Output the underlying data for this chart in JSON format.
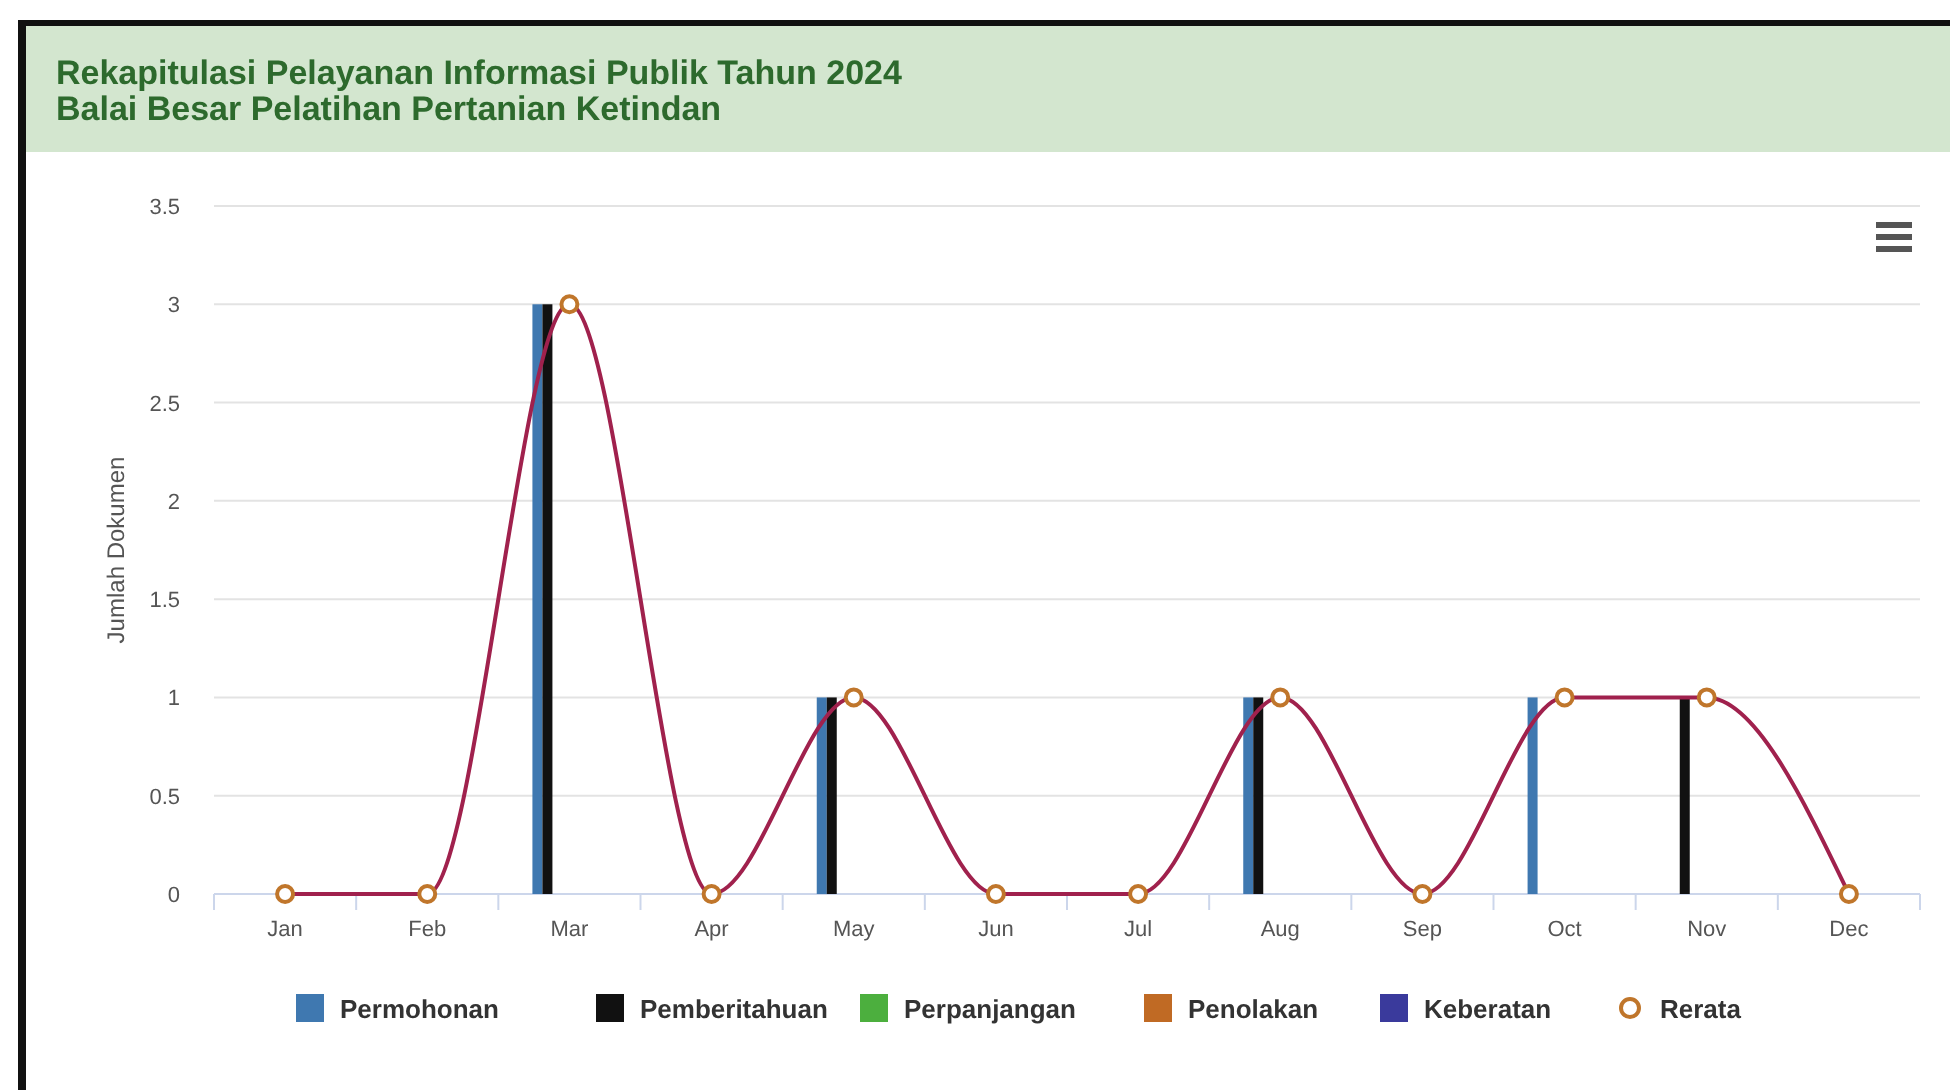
{
  "chart_data": {
    "type": "bar",
    "title": "Rekapitulasi Pelayanan Informasi Publik Tahun 2024",
    "subtitle": "Balai Besar Pelatihan Pertanian Ketindan",
    "ylabel": "Jumlah Dokumen",
    "categories": [
      "Jan",
      "Feb",
      "Mar",
      "Apr",
      "May",
      "Jun",
      "Jul",
      "Aug",
      "Sep",
      "Oct",
      "Nov",
      "Dec"
    ],
    "series": [
      {
        "name": "Permohonan",
        "color": "#3f78b0",
        "values": [
          0,
          0,
          3,
          0,
          1,
          0,
          0,
          1,
          0,
          1,
          0,
          0
        ]
      },
      {
        "name": "Pemberitahuan",
        "color": "#111111",
        "values": [
          0,
          0,
          3,
          0,
          1,
          0,
          0,
          1,
          0,
          0,
          1,
          0
        ]
      },
      {
        "name": "Perpanjangan",
        "color": "#4caf3e",
        "values": [
          0,
          0,
          0,
          0,
          0,
          0,
          0,
          0,
          0,
          0,
          0,
          0
        ]
      },
      {
        "name": "Penolakan",
        "color": "#c06a24",
        "values": [
          0,
          0,
          0,
          0,
          0,
          0,
          0,
          0,
          0,
          0,
          0,
          0
        ]
      },
      {
        "name": "Keberatan",
        "color": "#3a3a9c",
        "values": [
          0,
          0,
          0,
          0,
          0,
          0,
          0,
          0,
          0,
          0,
          0,
          0
        ]
      },
      {
        "name": "Rerata",
        "type": "line",
        "color": "#a0214d",
        "marker": "circle",
        "values": [
          0,
          0,
          3,
          0,
          1,
          0,
          0,
          1,
          0,
          1,
          1,
          0
        ]
      }
    ],
    "ylim": [
      0,
      3.5
    ],
    "yticks": [
      0,
      0.5,
      1,
      1.5,
      2,
      2.5,
      3,
      3.5
    ],
    "grid": "y",
    "legend": "bottom"
  }
}
